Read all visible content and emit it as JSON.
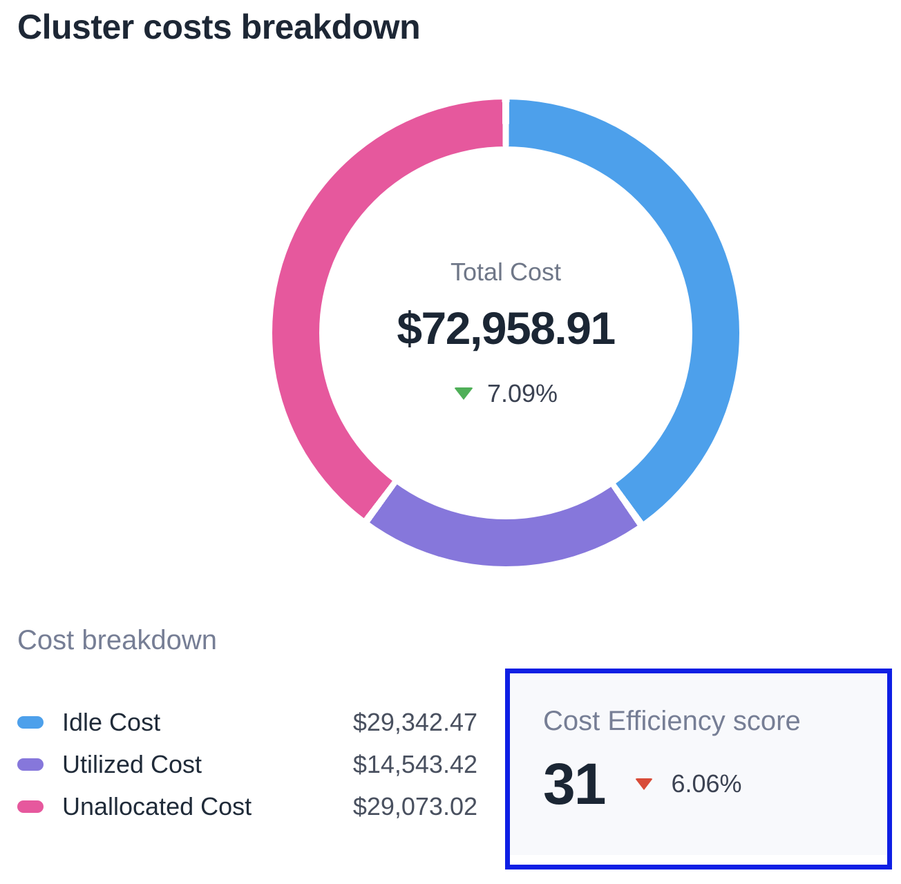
{
  "title": "Cluster costs breakdown",
  "donut": {
    "center_label": "Total Cost",
    "center_value": "$72,958.91",
    "change": "7.09%",
    "trend": "down"
  },
  "breakdown": {
    "heading": "Cost breakdown",
    "items": [
      {
        "label": "Idle Cost",
        "value": "$29,342.47",
        "color": "#4da0eb"
      },
      {
        "label": "Utilized Cost",
        "value": "$14,543.42",
        "color": "#8677db"
      },
      {
        "label": "Unallocated Cost",
        "value": "$29,073.02",
        "color": "#e6589d"
      }
    ]
  },
  "efficiency": {
    "title": "Cost Efficiency score",
    "score": "31",
    "change": "6.06%",
    "trend": "down"
  },
  "colors": {
    "positive_green": "#4faf58",
    "negative_red": "#d84b38",
    "highlight_border_blue": "#0e1fe4",
    "card_background": "#f8f9fc",
    "heading_dark": "#1d2735",
    "muted_slate": "#767e95"
  },
  "chart_data": {
    "type": "pie",
    "donut": true,
    "title": "Cluster costs breakdown",
    "categories": [
      "Idle Cost",
      "Utilized Cost",
      "Unallocated Cost"
    ],
    "values": [
      29342.47,
      14543.42,
      29073.02
    ],
    "colors": [
      "#4da0eb",
      "#8677db",
      "#e6589d"
    ],
    "total_label": "Total Cost",
    "total_value": "$72,958.91",
    "total_change_pct": "7.09%",
    "total_change_direction": "down",
    "segment_gap_deg": 1.8,
    "start_angle_deg": 0,
    "legend_position": "bottom-left"
  }
}
